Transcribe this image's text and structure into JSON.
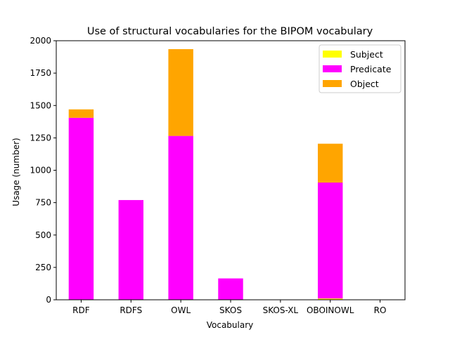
{
  "chart_data": {
    "type": "bar",
    "stacked": true,
    "title": "Use of structural vocabularies for the BIPOM vocabulary",
    "xlabel": "Vocabulary",
    "ylabel": "Usage (number)",
    "ylim": [
      0,
      2000
    ],
    "yticks": [
      0,
      250,
      500,
      750,
      1000,
      1250,
      1500,
      1750,
      2000
    ],
    "grid": false,
    "legend_position": "top-right",
    "categories": [
      "RDF",
      "RDFS",
      "OWL",
      "SKOS",
      "SKOS-XL",
      "OBOINOWL",
      "RO"
    ],
    "series": [
      {
        "name": "Subject",
        "color": "#ffff00",
        "values": [
          0,
          0,
          0,
          0,
          0,
          10,
          0
        ]
      },
      {
        "name": "Predicate",
        "color": "#ff00ff",
        "values": [
          1405,
          770,
          1265,
          165,
          0,
          895,
          0
        ]
      },
      {
        "name": "Object",
        "color": "#ffa500",
        "values": [
          65,
          0,
          670,
          0,
          0,
          300,
          0
        ]
      }
    ]
  }
}
